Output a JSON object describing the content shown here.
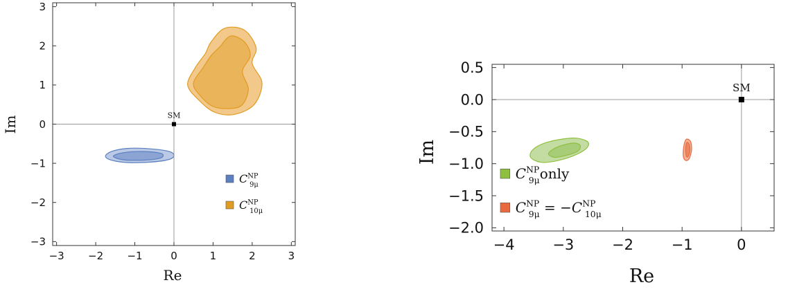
{
  "chart_data": [
    {
      "type": "contour",
      "xlabel": "Re",
      "ylabel": "Im",
      "xlim": [
        -3.1,
        3.1
      ],
      "ylim": [
        -3.1,
        3.1
      ],
      "xticks": [
        -3,
        -2,
        -1,
        0,
        1,
        2,
        3
      ],
      "yticks": [
        -3,
        -2,
        -1,
        0,
        1,
        2,
        3
      ],
      "xtick_labels": [
        "−3",
        "−2",
        "−1",
        "0",
        "1",
        "2",
        "3"
      ],
      "ytick_labels": [
        "−3",
        "−2",
        "−1",
        "0",
        "1",
        "2",
        "3"
      ],
      "grid": false,
      "axes_crosshair": true,
      "legend_position": "bottom-right",
      "sm_point": {
        "label": "SM",
        "x": 0,
        "y": 0
      },
      "series": [
        {
          "legend_main": "C",
          "legend_sub": "9μ",
          "legend_sup": "NP",
          "color_outer": "#b9c9e6",
          "color_inner": "#8ba4d3",
          "stroke": "#5b7fbf",
          "legend_color": "#5b7fbf",
          "regions": [
            {
              "level": "outer",
              "points": [
                [
                  -1.75,
                  -0.82
                ],
                [
                  -1.6,
                  -0.7
                ],
                [
                  -1.2,
                  -0.62
                ],
                [
                  -0.6,
                  -0.63
                ],
                [
                  -0.12,
                  -0.7
                ],
                [
                  0,
                  -0.8
                ],
                [
                  -0.12,
                  -0.9
                ],
                [
                  -0.6,
                  -0.97
                ],
                [
                  -1.2,
                  -0.98
                ],
                [
                  -1.6,
                  -0.92
                ]
              ]
            },
            {
              "level": "inner",
              "points": [
                [
                  -1.55,
                  -0.82
                ],
                [
                  -1.3,
                  -0.73
                ],
                [
                  -0.8,
                  -0.7
                ],
                [
                  -0.35,
                  -0.74
                ],
                [
                  -0.28,
                  -0.82
                ],
                [
                  -0.4,
                  -0.88
                ],
                [
                  -0.8,
                  -0.92
                ],
                [
                  -1.3,
                  -0.91
                ]
              ]
            }
          ]
        },
        {
          "legend_main": "C",
          "legend_sub": "10μ",
          "legend_sup": "NP",
          "color_outer": "#f2c98a",
          "color_inner": "#e9b45a",
          "stroke": "#e19b22",
          "legend_color": "#e19b22",
          "regions": [
            {
              "level": "outer",
              "points": [
                [
                  0.95,
                  2.1
                ],
                [
                  1.3,
                  2.45
                ],
                [
                  1.8,
                  2.4
                ],
                [
                  2.1,
                  1.95
                ],
                [
                  2.0,
                  1.55
                ],
                [
                  2.25,
                  1.05
                ],
                [
                  2.05,
                  0.5
                ],
                [
                  1.55,
                  0.25
                ],
                [
                  1.05,
                  0.3
                ],
                [
                  0.65,
                  0.6
                ],
                [
                  0.35,
                  1.0
                ],
                [
                  0.55,
                  1.45
                ],
                [
                  0.8,
                  1.8
                ]
              ]
            },
            {
              "level": "inner",
              "points": [
                [
                  1.15,
                  1.95
                ],
                [
                  1.45,
                  2.25
                ],
                [
                  1.8,
                  2.1
                ],
                [
                  1.95,
                  1.75
                ],
                [
                  1.75,
                  1.35
                ],
                [
                  1.9,
                  0.9
                ],
                [
                  1.75,
                  0.5
                ],
                [
                  1.45,
                  0.4
                ],
                [
                  1.0,
                  0.45
                ],
                [
                  0.65,
                  0.75
                ],
                [
                  0.5,
                  1.05
                ],
                [
                  0.75,
                  1.45
                ],
                [
                  0.95,
                  1.75
                ]
              ]
            }
          ]
        }
      ]
    },
    {
      "type": "contour",
      "xlabel": "Re",
      "ylabel": "Im",
      "xlim": [
        -4.2,
        0.55
      ],
      "ylim": [
        -2.05,
        0.55
      ],
      "xticks": [
        -4,
        -3,
        -2,
        -1,
        0
      ],
      "yticks": [
        0.5,
        0.0,
        -0.5,
        -1.0,
        -1.5,
        -2.0
      ],
      "xtick_labels": [
        "−4",
        "−3",
        "−2",
        "−1",
        "0"
      ],
      "ytick_labels": [
        "0.5",
        "0.0",
        "−0.5",
        "−1.0",
        "−1.5",
        "−2.0"
      ],
      "grid": false,
      "axes_crosshair": true,
      "legend_position": "bottom-left",
      "sm_point": {
        "label": "SM",
        "x": 0,
        "y": 0
      },
      "series": [
        {
          "legend_main": "C",
          "legend_sub": "9μ",
          "legend_sup": "NP",
          "legend_suffix": "only",
          "color_outer": "#c3dca2",
          "color_inner": "#a8cd78",
          "stroke": "#8fbf3f",
          "legend_color": "#8fbf3f",
          "regions": [
            {
              "level": "outer",
              "points": [
                [
                  -3.55,
                  -0.9
                ],
                [
                  -3.5,
                  -0.77
                ],
                [
                  -3.25,
                  -0.66
                ],
                [
                  -2.85,
                  -0.6
                ],
                [
                  -2.62,
                  -0.64
                ],
                [
                  -2.58,
                  -0.72
                ],
                [
                  -2.7,
                  -0.82
                ],
                [
                  -3.0,
                  -0.93
                ],
                [
                  -3.35,
                  -0.98
                ]
              ]
            },
            {
              "level": "inner",
              "points": [
                [
                  -3.25,
                  -0.84
                ],
                [
                  -3.1,
                  -0.74
                ],
                [
                  -2.85,
                  -0.68
                ],
                [
                  -2.72,
                  -0.71
                ],
                [
                  -2.75,
                  -0.8
                ],
                [
                  -2.95,
                  -0.87
                ],
                [
                  -3.15,
                  -0.9
                ]
              ]
            }
          ]
        },
        {
          "legend_main": "C",
          "legend_sub": "9μ",
          "legend_sup": "NP",
          "legend_mid": " = −",
          "legend_main2": "C",
          "legend_sub2": "10μ",
          "legend_sup2": "NP",
          "color_outer": "#f4b29b",
          "color_inner": "#ee8660",
          "stroke": "#e86a3e",
          "legend_color": "#e86a3e",
          "regions": [
            {
              "level": "outer",
              "points": [
                [
                  -0.93,
                  -0.62
                ],
                [
                  -0.86,
                  -0.65
                ],
                [
                  -0.84,
                  -0.78
                ],
                [
                  -0.88,
                  -0.92
                ],
                [
                  -0.94,
                  -0.95
                ],
                [
                  -0.98,
                  -0.88
                ],
                [
                  -0.97,
                  -0.72
                ]
              ]
            },
            {
              "level": "inner",
              "points": [
                [
                  -0.92,
                  -0.67
                ],
                [
                  -0.88,
                  -0.7
                ],
                [
                  -0.87,
                  -0.8
                ],
                [
                  -0.9,
                  -0.89
                ],
                [
                  -0.93,
                  -0.88
                ],
                [
                  -0.94,
                  -0.76
                ]
              ]
            }
          ]
        }
      ]
    }
  ]
}
